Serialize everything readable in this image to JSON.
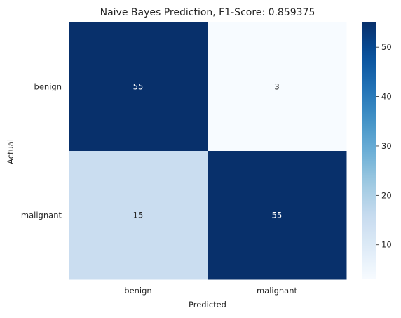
{
  "chart_data": {
    "type": "heatmap",
    "title": "Naive Bayes Prediction, F1-Score: 0.859375",
    "xlabel": "Predicted",
    "ylabel": "Actual",
    "x_categories": [
      "benign",
      "malignant"
    ],
    "y_categories": [
      "benign",
      "malignant"
    ],
    "values": [
      [
        55,
        3
      ],
      [
        15,
        55
      ]
    ],
    "colormap": "Blues",
    "color_range": [
      3,
      55
    ],
    "colorbar_ticks": [
      10,
      20,
      30,
      40,
      50
    ],
    "annotations": true,
    "grid": false
  }
}
